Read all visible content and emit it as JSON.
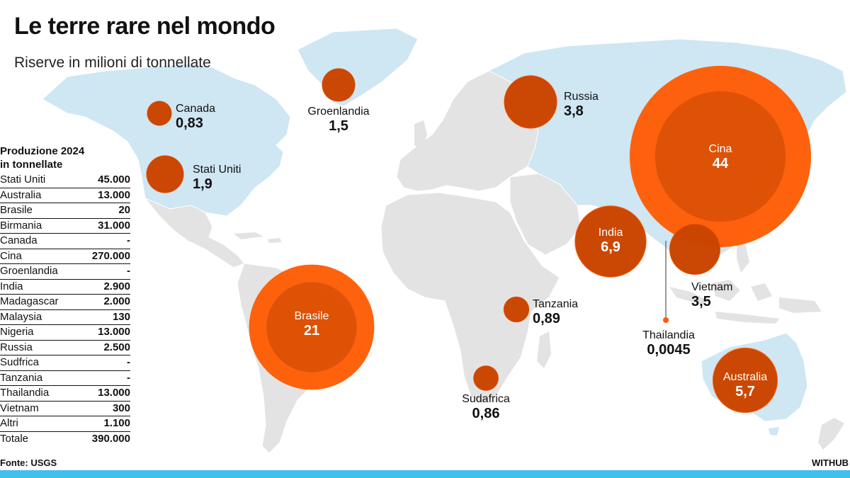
{
  "title": "Le terre rare nel mondo",
  "subtitle": "Riserve in milioni di tonnellate",
  "production": {
    "title_line1": "Produzione 2024",
    "title_line2": "in tonnellate",
    "rows": [
      {
        "country": "Stati Uniti",
        "value": "45.000"
      },
      {
        "country": "Australia",
        "value": "13.000"
      },
      {
        "country": "Brasile",
        "value": "20"
      },
      {
        "country": "Birmania",
        "value": "31.000"
      },
      {
        "country": "Canada",
        "value": "-"
      },
      {
        "country": "Cina",
        "value": "270.000"
      },
      {
        "country": "Groenlandia",
        "value": "-"
      },
      {
        "country": "India",
        "value": "2.900"
      },
      {
        "country": "Madagascar",
        "value": "2.000"
      },
      {
        "country": "Malaysia",
        "value": "130"
      },
      {
        "country": "Nigeria",
        "value": "13.000"
      },
      {
        "country": "Russia",
        "value": "2.500"
      },
      {
        "country": "Sudfrica",
        "value": "-"
      },
      {
        "country": "Tanzania",
        "value": "-"
      },
      {
        "country": "Thailandia",
        "value": "13.000"
      },
      {
        "country": "Vietnam",
        "value": "300"
      },
      {
        "country": "Altri",
        "value": "1.100"
      }
    ],
    "total": {
      "label": "Totale",
      "value": "390.000"
    }
  },
  "source": "Fonte: USGS",
  "brand": "WITHUB",
  "colors": {
    "land": "#e3e3e3",
    "highlight_land": "#cfe6f3",
    "bubble_fill": "#ff5a00",
    "bubble_dark": "#b84000",
    "bar": "#3fc0ee"
  },
  "chart_data": {
    "type": "proportional-symbol-map",
    "unit": "milioni di tonnellate",
    "reserves": [
      {
        "country": "Canada",
        "value": 0.83,
        "value_label": "0,83"
      },
      {
        "country": "Stati Uniti",
        "value": 1.9,
        "value_label": "1,9"
      },
      {
        "country": "Groenlandia",
        "value": 1.5,
        "value_label": "1,5"
      },
      {
        "country": "Russia",
        "value": 3.8,
        "value_label": "3,8"
      },
      {
        "country": "Cina",
        "value": 44,
        "value_label": "44"
      },
      {
        "country": "India",
        "value": 6.9,
        "value_label": "6,9"
      },
      {
        "country": "Vietnam",
        "value": 3.5,
        "value_label": "3,5"
      },
      {
        "country": "Thailandia",
        "value": 0.0045,
        "value_label": "0,0045"
      },
      {
        "country": "Brasile",
        "value": 21,
        "value_label": "21"
      },
      {
        "country": "Tanzania",
        "value": 0.89,
        "value_label": "0,89"
      },
      {
        "country": "Sudafrica",
        "value": 0.86,
        "value_label": "0,86"
      },
      {
        "country": "Australia",
        "value": 5.7,
        "value_label": "5,7"
      }
    ]
  }
}
